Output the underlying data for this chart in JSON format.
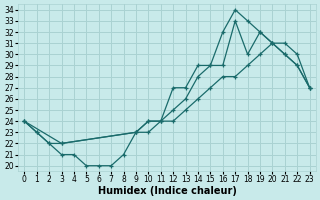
{
  "xlabel": "Humidex (Indice chaleur)",
  "xlim": [
    -0.5,
    23.5
  ],
  "ylim": [
    19.5,
    34.5
  ],
  "xticks": [
    0,
    1,
    2,
    3,
    4,
    5,
    6,
    7,
    8,
    9,
    10,
    11,
    12,
    13,
    14,
    15,
    16,
    17,
    18,
    19,
    20,
    21,
    22,
    23
  ],
  "yticks": [
    20,
    21,
    22,
    23,
    24,
    25,
    26,
    27,
    28,
    29,
    30,
    31,
    32,
    33,
    34
  ],
  "background_color": "#c8eaea",
  "grid_color": "#aad2d2",
  "line_color": "#1a6b6b",
  "line1_x": [
    0,
    1,
    2,
    3,
    4,
    5,
    6,
    7,
    8,
    9,
    10,
    11,
    12,
    13,
    14,
    15,
    16,
    17,
    18,
    19,
    20,
    21,
    22,
    23
  ],
  "line1_y": [
    24,
    23,
    22,
    21,
    21,
    20,
    20,
    20,
    21,
    23,
    24,
    24,
    27,
    27,
    29,
    29,
    32,
    34,
    33,
    32,
    31,
    30,
    29,
    27
  ],
  "line2_x": [
    0,
    3,
    9,
    10,
    11,
    12,
    13,
    14,
    15,
    16,
    17,
    18,
    19,
    20,
    21,
    22,
    23
  ],
  "line2_y": [
    24,
    22,
    23,
    24,
    24,
    25,
    26,
    28,
    29,
    29,
    33,
    30,
    32,
    31,
    30,
    29,
    27
  ],
  "line3_x": [
    0,
    1,
    2,
    3,
    9,
    10,
    11,
    12,
    13,
    14,
    15,
    16,
    17,
    18,
    19,
    20,
    21,
    22,
    23
  ],
  "line3_y": [
    24,
    23,
    22,
    22,
    23,
    23,
    24,
    24,
    25,
    26,
    27,
    28,
    28,
    29,
    30,
    31,
    31,
    30,
    27
  ],
  "tick_fontsize": 5.5,
  "xlabel_fontsize": 7,
  "figsize": [
    3.2,
    2.0
  ],
  "dpi": 100
}
